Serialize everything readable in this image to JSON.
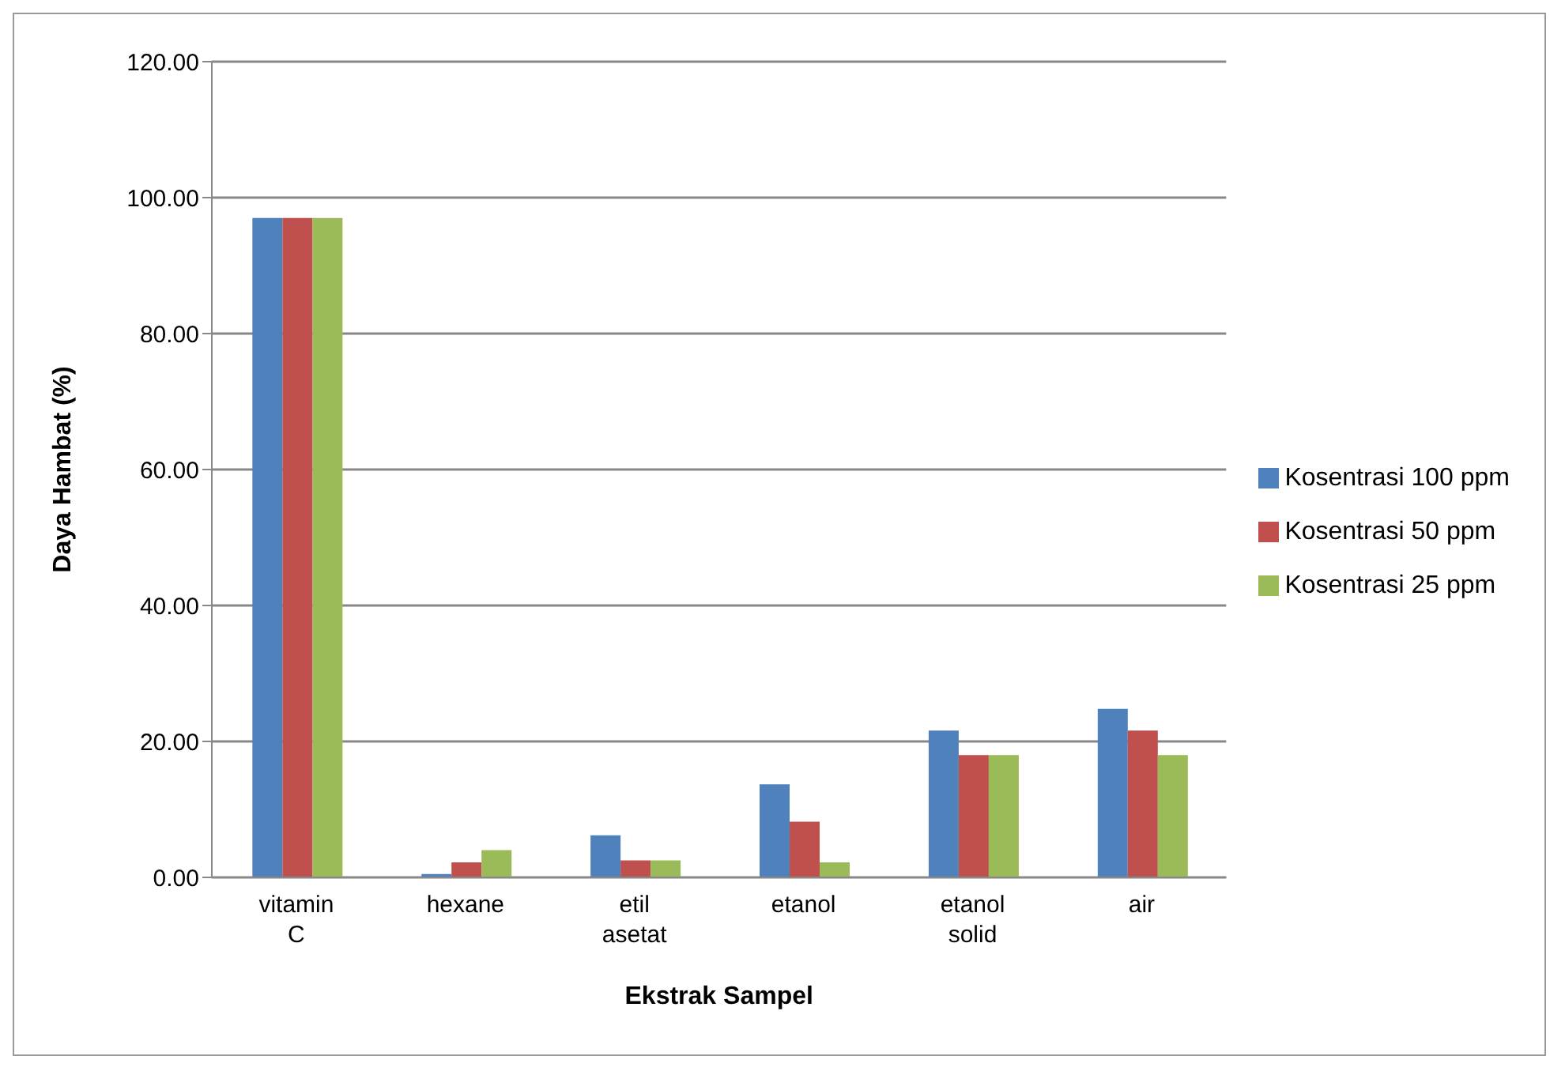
{
  "chart_data": {
    "type": "bar",
    "xlabel": "Ekstrak Sampel",
    "ylabel": "Daya Hambat (%)",
    "categories": [
      "vitamin C",
      "hexane",
      "etil asetat",
      "etanol",
      "etanol solid",
      "air"
    ],
    "series": [
      {
        "name": "Kosentrasi 100 ppm",
        "color": "#4f81bd",
        "values": [
          97.0,
          0.5,
          6.2,
          13.7,
          21.6,
          24.8
        ]
      },
      {
        "name": "Kosentrasi 50 ppm",
        "color": "#c0504d",
        "values": [
          97.0,
          2.2,
          2.5,
          8.2,
          18.0,
          21.6
        ]
      },
      {
        "name": "Kosentrasi 25 ppm",
        "color": "#9bbb59",
        "values": [
          97.0,
          4.0,
          2.5,
          2.2,
          18.0,
          18.0
        ]
      }
    ],
    "ylim": [
      0,
      120
    ],
    "yticks": [
      {
        "value": 0,
        "label": "0.00"
      },
      {
        "value": 20,
        "label": "20.00"
      },
      {
        "value": 40,
        "label": "40.00"
      },
      {
        "value": 60,
        "label": "60.00"
      },
      {
        "value": 80,
        "label": "80.00"
      },
      {
        "value": 100,
        "label": "100.00"
      },
      {
        "value": 120,
        "label": "120.00"
      }
    ],
    "grid": "y",
    "legend": "right"
  }
}
